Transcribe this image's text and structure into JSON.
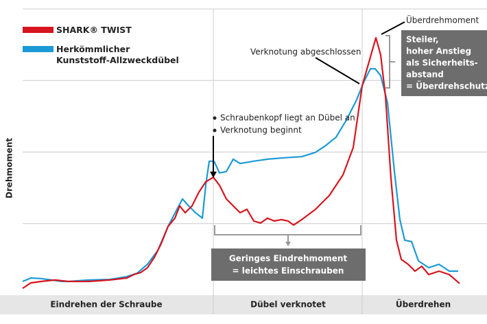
{
  "chart_data": {
    "type": "line",
    "y_label": "Drehmoment",
    "xlim": [
      0,
      710
    ],
    "ylim": [
      0,
      100
    ],
    "yticks": [
      25,
      50,
      75,
      100
    ],
    "grid": true,
    "series": [
      {
        "name": "SHARK® TWIST",
        "color": "#d7141e",
        "x": [
          33,
          45,
          60,
          80,
          100,
          130,
          160,
          185,
          195,
          205,
          215,
          225,
          235,
          245,
          255,
          262,
          270,
          280,
          290,
          300,
          311,
          320,
          330,
          340,
          350,
          360,
          370,
          380,
          390,
          400,
          410,
          420,
          428,
          440,
          460,
          480,
          500,
          515,
          528,
          538,
          548,
          555,
          562,
          570,
          578,
          585,
          595,
          605,
          615,
          625,
          640,
          655,
          670
        ],
        "values": [
          2.4,
          4.3,
          4.8,
          5.3,
          4.8,
          4.8,
          5.3,
          6,
          7.2,
          7.9,
          9.6,
          13.2,
          18,
          24,
          26.9,
          31.2,
          28.8,
          31.2,
          36,
          39.6,
          41.2,
          38.4,
          33.6,
          31.2,
          28.8,
          30,
          25.9,
          25.2,
          26.9,
          25.9,
          26.4,
          25.9,
          24.5,
          26.4,
          30,
          34.8,
          42,
          51.6,
          73.1,
          81.5,
          89.9,
          83.9,
          69.5,
          40.8,
          19.2,
          12.5,
          10.8,
          8.4,
          10.1,
          7.2,
          8.4,
          7.2,
          4.1
        ]
      },
      {
        "name": "Herkömmlicher Kunststoff-Allzweckdübel",
        "color": "#1a9ad6",
        "x": [
          33,
          45,
          60,
          75,
          90,
          100,
          130,
          160,
          185,
          200,
          215,
          230,
          245,
          258,
          266,
          275,
          285,
          295,
          300,
          305,
          312,
          320,
          330,
          340,
          350,
          370,
          390,
          415,
          440,
          460,
          475,
          490,
          505,
          520,
          530,
          540,
          547,
          555,
          565,
          575,
          583,
          590,
          600,
          610,
          625,
          640,
          655,
          668
        ],
        "values": [
          4.8,
          6,
          5.8,
          5.3,
          4.8,
          4.8,
          5.3,
          5.5,
          6.5,
          7.7,
          10.8,
          15.6,
          24,
          30,
          33.6,
          31.2,
          28.8,
          26.9,
          38.4,
          46.8,
          46.8,
          42.7,
          43.2,
          47.5,
          46,
          46.8,
          47.5,
          48,
          48.4,
          49.9,
          52.3,
          55.2,
          61.2,
          68.3,
          74.3,
          79.1,
          79.1,
          76.7,
          67.1,
          43.2,
          26.4,
          19.2,
          18.7,
          12,
          9.6,
          10.8,
          8.4,
          8.4
        ]
      }
    ],
    "annotations": {
      "peak": "Überdrehmoment",
      "knot_done": "Verknotung abgeschlossen",
      "knot_start": [
        "Schraubenkopf liegt an Dübel an",
        "Verknotung beginnt"
      ],
      "safety_box": [
        "Steiler,",
        "hoher Anstieg",
        "als Sicherheits-",
        "abstand",
        "= Überdrehschutz"
      ],
      "low_torque_box": [
        "Geringes Eindrehmoment",
        "= leichtes Einschrauben"
      ]
    },
    "phases": [
      "Eindrehen der Schraube",
      "Dübel verknotet",
      "Überdrehen"
    ]
  }
}
